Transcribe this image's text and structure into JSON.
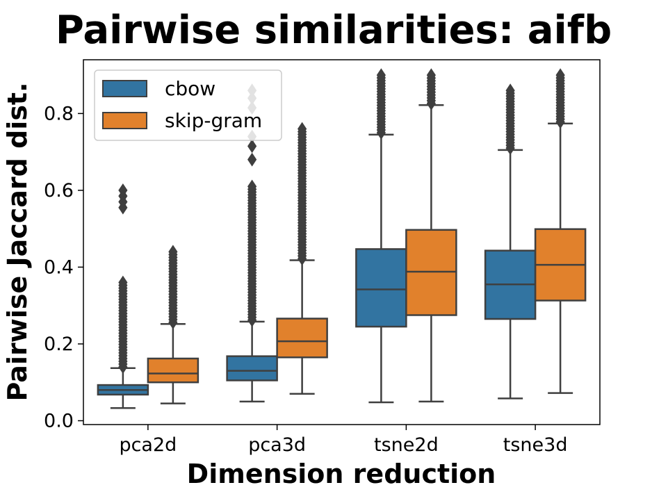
{
  "chart_data": {
    "type": "box",
    "title": "Pairwise similarities: aifb",
    "xlabel": "Dimension reduction",
    "ylabel": "Pairwise Jaccard dist.",
    "ylim": [
      -0.01,
      0.94
    ],
    "yticks": [
      0.0,
      0.2,
      0.4,
      0.6,
      0.8
    ],
    "ytick_labels": [
      "0.0",
      "0.2",
      "0.4",
      "0.6",
      "0.8"
    ],
    "categories": [
      "pca2d",
      "pca3d",
      "tsne2d",
      "tsne3d"
    ],
    "legend": {
      "position": "top-left",
      "entries": [
        "cbow",
        "skip-gram"
      ]
    },
    "series": [
      {
        "name": "cbow",
        "color": "#3274a1",
        "boxes": [
          {
            "whisker_low": 0.033,
            "q1": 0.068,
            "median": 0.08,
            "q3": 0.093,
            "whisker_high": 0.137,
            "outlier_range": [
              0.14,
              0.36
            ],
            "outliers": [
              0.555,
              0.57,
              0.585,
              0.6
            ]
          },
          {
            "whisker_low": 0.05,
            "q1": 0.105,
            "median": 0.13,
            "q3": 0.168,
            "whisker_high": 0.258,
            "outlier_range": [
              0.262,
              0.61
            ],
            "outliers": [
              0.68,
              0.715,
              0.74,
              0.815,
              0.84,
              0.86
            ]
          },
          {
            "whisker_low": 0.048,
            "q1": 0.245,
            "median": 0.342,
            "q3": 0.447,
            "whisker_high": 0.745,
            "outlier_range": [
              0.75,
              0.9
            ],
            "outliers": []
          },
          {
            "whisker_low": 0.058,
            "q1": 0.265,
            "median": 0.355,
            "q3": 0.443,
            "whisker_high": 0.705,
            "outlier_range": [
              0.71,
              0.86
            ],
            "outliers": []
          }
        ]
      },
      {
        "name": "skip-gram",
        "color": "#e1812c",
        "boxes": [
          {
            "whisker_low": 0.045,
            "q1": 0.1,
            "median": 0.123,
            "q3": 0.162,
            "whisker_high": 0.252,
            "outlier_range": [
              0.256,
              0.44
            ],
            "outliers": []
          },
          {
            "whisker_low": 0.07,
            "q1": 0.165,
            "median": 0.207,
            "q3": 0.266,
            "whisker_high": 0.418,
            "outlier_range": [
              0.422,
              0.76
            ],
            "outliers": []
          },
          {
            "whisker_low": 0.05,
            "q1": 0.275,
            "median": 0.388,
            "q3": 0.497,
            "whisker_high": 0.822,
            "outlier_range": [
              0.826,
              0.9
            ],
            "outliers": []
          },
          {
            "whisker_low": 0.072,
            "q1": 0.313,
            "median": 0.406,
            "q3": 0.499,
            "whisker_high": 0.774,
            "outlier_range": [
              0.778,
              0.9
            ],
            "outliers": []
          }
        ]
      }
    ]
  }
}
